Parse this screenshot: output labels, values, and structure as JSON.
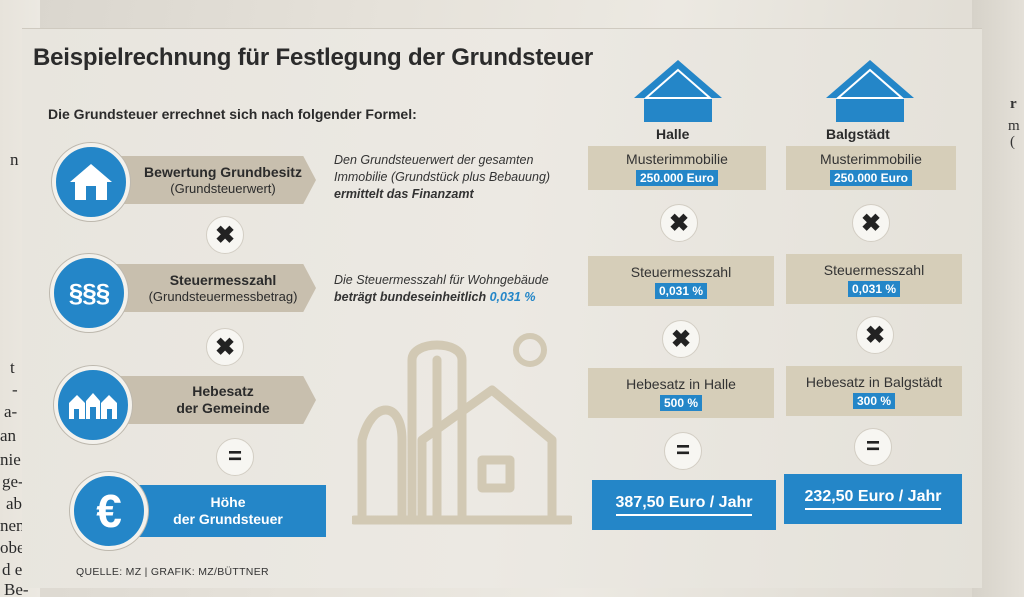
{
  "title": "Beispielrechnung für Festlegung der Grundsteuer",
  "subtitle": "Die Grundsteuer errechnet sich nach folgender Formel:",
  "formula": {
    "row1": {
      "main": "Bewertung Grundbesitz",
      "sub": "(Grundsteuerwert)",
      "icon": "house-icon",
      "desc_line1": "Den Grundsteuerwert der gesamten",
      "desc_line2": "Immobilie (Grundstück plus Bebauung)",
      "desc_bold": "ermittelt das Finanzamt"
    },
    "row2": {
      "main": "Steuermesszahl",
      "sub": "(Grundsteuermessbetrag)",
      "icon": "paragraph-icon",
      "icon_text": "§§§",
      "desc_line1": "Die Steuermesszahl für Wohngebäude",
      "desc_bold": "beträgt bundeseinheitlich",
      "desc_value": "0,031 %"
    },
    "row3": {
      "main_line1": "Hebesatz",
      "main_line2": "der Gemeinde",
      "icon": "town-icon"
    },
    "row4": {
      "main_line1": "Höhe",
      "main_line2": "der Grundsteuer",
      "icon": "euro-icon",
      "icon_text": "€"
    }
  },
  "operators": {
    "times": "✖",
    "equals": "="
  },
  "cities": [
    {
      "name": "Halle",
      "property_label": "Musterimmobilie",
      "property_value": "250.000 Euro",
      "messzahl_label": "Steuermesszahl",
      "messzahl_value": "0,031 %",
      "hebesatz_label": "Hebesatz in Halle",
      "hebesatz_value": "500 %",
      "result": "387,50 Euro / Jahr"
    },
    {
      "name": "Balgstädt",
      "property_label": "Musterimmobilie",
      "property_value": "250.000 Euro",
      "messzahl_label": "Steuermesszahl",
      "messzahl_value": "0,031 %",
      "hebesatz_label": "Hebesatz in Balgstädt",
      "hebesatz_value": "300 %",
      "result": "232,50 Euro / Jahr"
    }
  ],
  "source": "QUELLE: MZ | GRAFIK: MZ/BÜTTNER",
  "colors": {
    "accent": "#2486c8",
    "ribbon": "#c8bfae",
    "cell": "#d6ceb9"
  },
  "newspaper_left": [
    "n",
    "t",
    "-",
    "a-",
    "an",
    "nie",
    "ge-",
    "ab",
    "nen,",
    "ober",
    "d es",
    "Be-"
  ],
  "newspaper_right": [
    "r",
    "m",
    "("
  ]
}
